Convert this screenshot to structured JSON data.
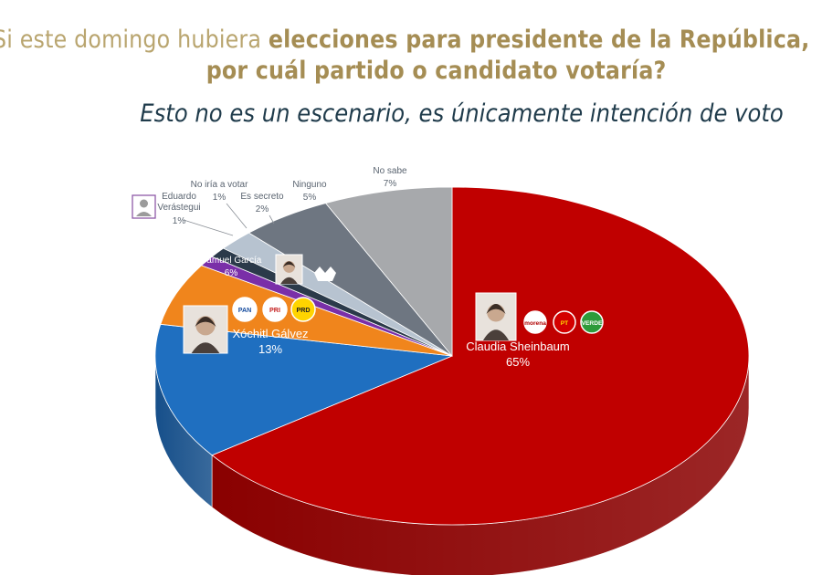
{
  "header": {
    "question_prefix": "Si este domingo hubiera ",
    "question_bold_1": "elecciones para presidente de la República,",
    "question_bold_2": "por cuál partido o candidato votaría?",
    "subtitle": "Esto no es un escenario, es únicamente intención de voto"
  },
  "chart_data": {
    "type": "pie",
    "three_d": true,
    "legend": "none",
    "labels_on_chart": true,
    "slices": [
      {
        "label": "Claudia Sheinbaum",
        "value": 65,
        "value_label": "65%",
        "color": "#c00000",
        "side_color": "#8a0000",
        "parties": [
          "morena",
          "PT",
          "VERDE"
        ]
      },
      {
        "label": "Xóchitl Gálvez",
        "value": 13,
        "value_label": "13%",
        "color": "#1f6fc0",
        "side_color": "#164f8a",
        "parties": [
          "PAN",
          "PRI",
          "PRD"
        ]
      },
      {
        "label": "Samuel García",
        "value": 6,
        "value_label": "6%",
        "color": "#f0851c",
        "side_color": "#b5600f",
        "parties": [
          "MOVIMIENTO CIUDADANO"
        ]
      },
      {
        "label": "Eduardo Verástegui",
        "value": 1,
        "value_label": "1%",
        "color": "#7a2fa8",
        "side_color": "#52206f",
        "parties": []
      },
      {
        "label": "No iría a votar",
        "value": 1,
        "value_label": "1%",
        "color": "#2b3a4a",
        "side_color": "#1a232c",
        "parties": []
      },
      {
        "label": "Es secreto",
        "value": 2,
        "value_label": "2%",
        "color": "#b7c3d0",
        "side_color": "#8695a3",
        "parties": []
      },
      {
        "label": "Ninguno",
        "value": 5,
        "value_label": "5%",
        "color": "#6e7681",
        "side_color": "#4a5058",
        "parties": []
      },
      {
        "label": "No sabe",
        "value": 7,
        "value_label": "7%",
        "color": "#a7a9ac",
        "side_color": "#7b7d80",
        "parties": []
      }
    ]
  }
}
